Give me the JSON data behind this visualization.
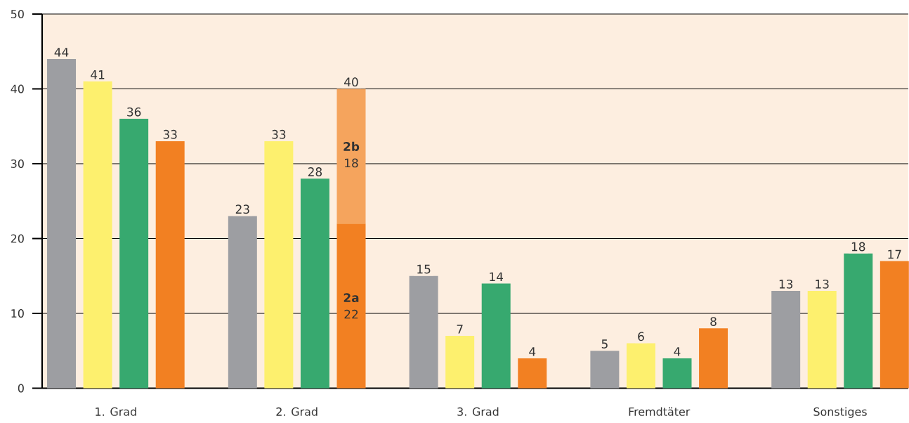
{
  "chart_data": {
    "type": "bar",
    "categories": [
      "1. Grad",
      "2. Grad",
      "3. Grad",
      "Fremdtäter",
      "Sonstiges"
    ],
    "series": [
      {
        "color": "#9d9ea2",
        "values": [
          44,
          23,
          15,
          5,
          13
        ]
      },
      {
        "color": "#fdf06e",
        "values": [
          41,
          33,
          7,
          6,
          13
        ]
      },
      {
        "color": "#37a96f",
        "values": [
          36,
          28,
          14,
          4,
          18
        ]
      },
      {
        "color": "#f28022",
        "values": [
          33,
          22,
          4,
          8,
          17
        ]
      },
      {
        "color": "#f5a45d",
        "values": [
          null,
          18,
          null,
          null,
          null
        ],
        "base": [
          null,
          22,
          null,
          null,
          null
        ]
      }
    ],
    "annotations": [
      "2a",
      "2b",
      "40"
    ],
    "ylim": [
      0,
      50
    ],
    "yticks": [
      0,
      10,
      20,
      30,
      40,
      50
    ],
    "grid": "y",
    "data_labels": true
  }
}
